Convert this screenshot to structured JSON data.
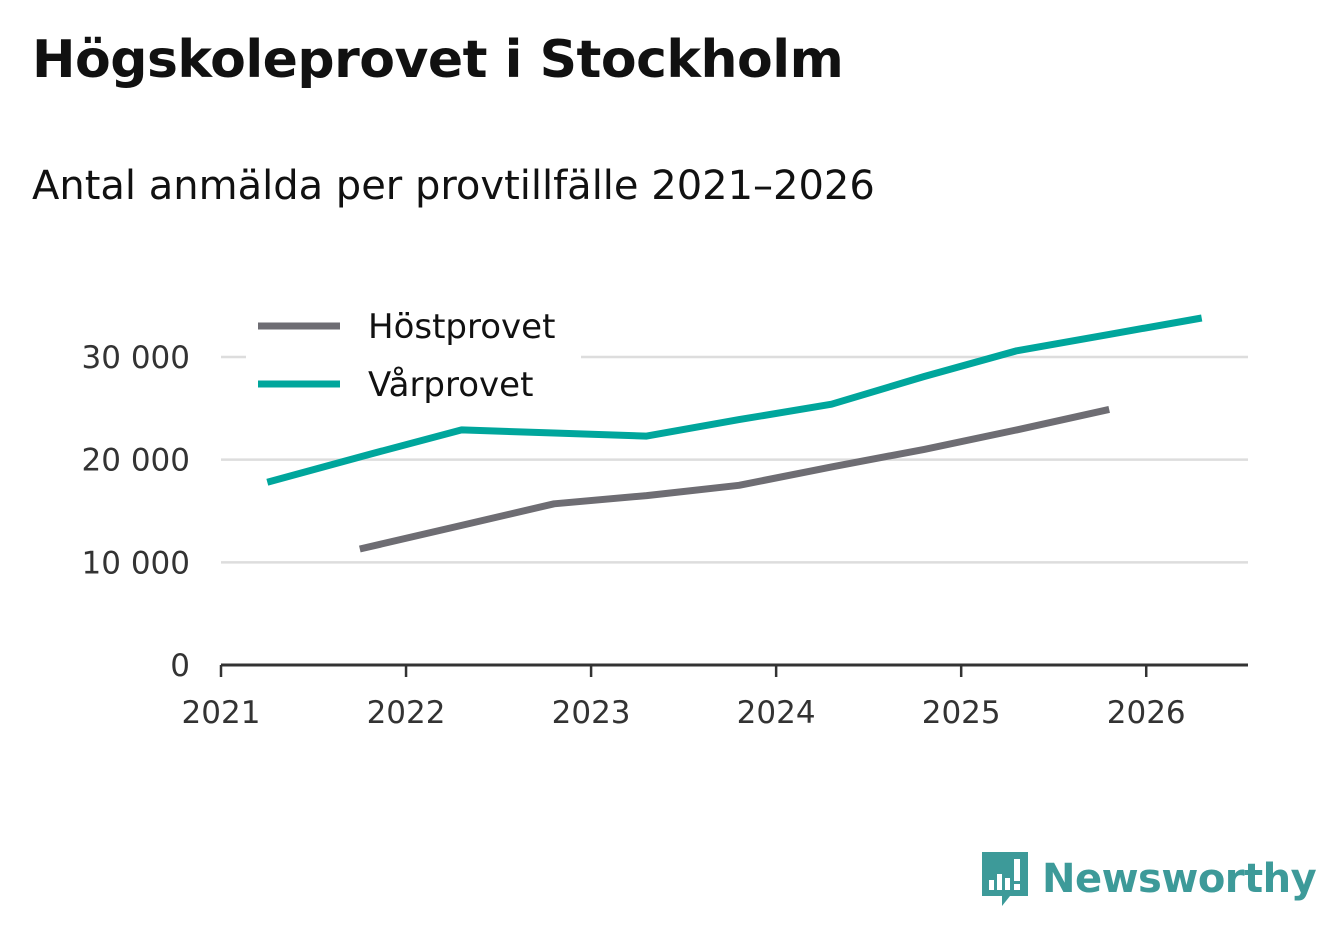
{
  "title": "Högskoleprovet i Stockholm",
  "subtitle": "Antal anmälda per provtillfälle 2021–2026",
  "logo_text": "Newsworthy",
  "chart_data": {
    "type": "line",
    "xlim": [
      2021,
      2026.55
    ],
    "ylim": [
      0,
      30000
    ],
    "x_ticks": [
      2021,
      2022,
      2023,
      2024,
      2025,
      2026
    ],
    "x_tick_labels": [
      "2021",
      "2022",
      "2023",
      "2024",
      "2025",
      "2026"
    ],
    "y_ticks": [
      0,
      10000,
      20000,
      30000
    ],
    "y_tick_labels": [
      "0",
      "10 000",
      "20 000",
      "30 000"
    ],
    "grid": true,
    "legend_position": "top-left",
    "series": [
      {
        "name": "Höstprovet",
        "color": "#6e6d73",
        "points": [
          {
            "x": 2021.75,
            "y": 11300
          },
          {
            "x": 2022.3,
            "y": 13600
          },
          {
            "x": 2022.8,
            "y": 15700
          },
          {
            "x": 2023.3,
            "y": 16500
          },
          {
            "x": 2023.8,
            "y": 17500
          },
          {
            "x": 2024.3,
            "y": 19300
          },
          {
            "x": 2024.8,
            "y": 21000
          },
          {
            "x": 2025.3,
            "y": 22900
          },
          {
            "x": 2025.8,
            "y": 24900
          }
        ]
      },
      {
        "name": "Vårprovet",
        "color": "#00a69c",
        "points": [
          {
            "x": 2021.25,
            "y": 17800
          },
          {
            "x": 2021.8,
            "y": 20500
          },
          {
            "x": 2022.3,
            "y": 22900
          },
          {
            "x": 2022.8,
            "y": 22600
          },
          {
            "x": 2023.3,
            "y": 22300
          },
          {
            "x": 2023.8,
            "y": 23900
          },
          {
            "x": 2024.3,
            "y": 25400
          },
          {
            "x": 2024.8,
            "y": 28100
          },
          {
            "x": 2025.3,
            "y": 30600
          },
          {
            "x": 2025.8,
            "y": 32200
          },
          {
            "x": 2026.3,
            "y": 33800
          }
        ]
      }
    ]
  }
}
